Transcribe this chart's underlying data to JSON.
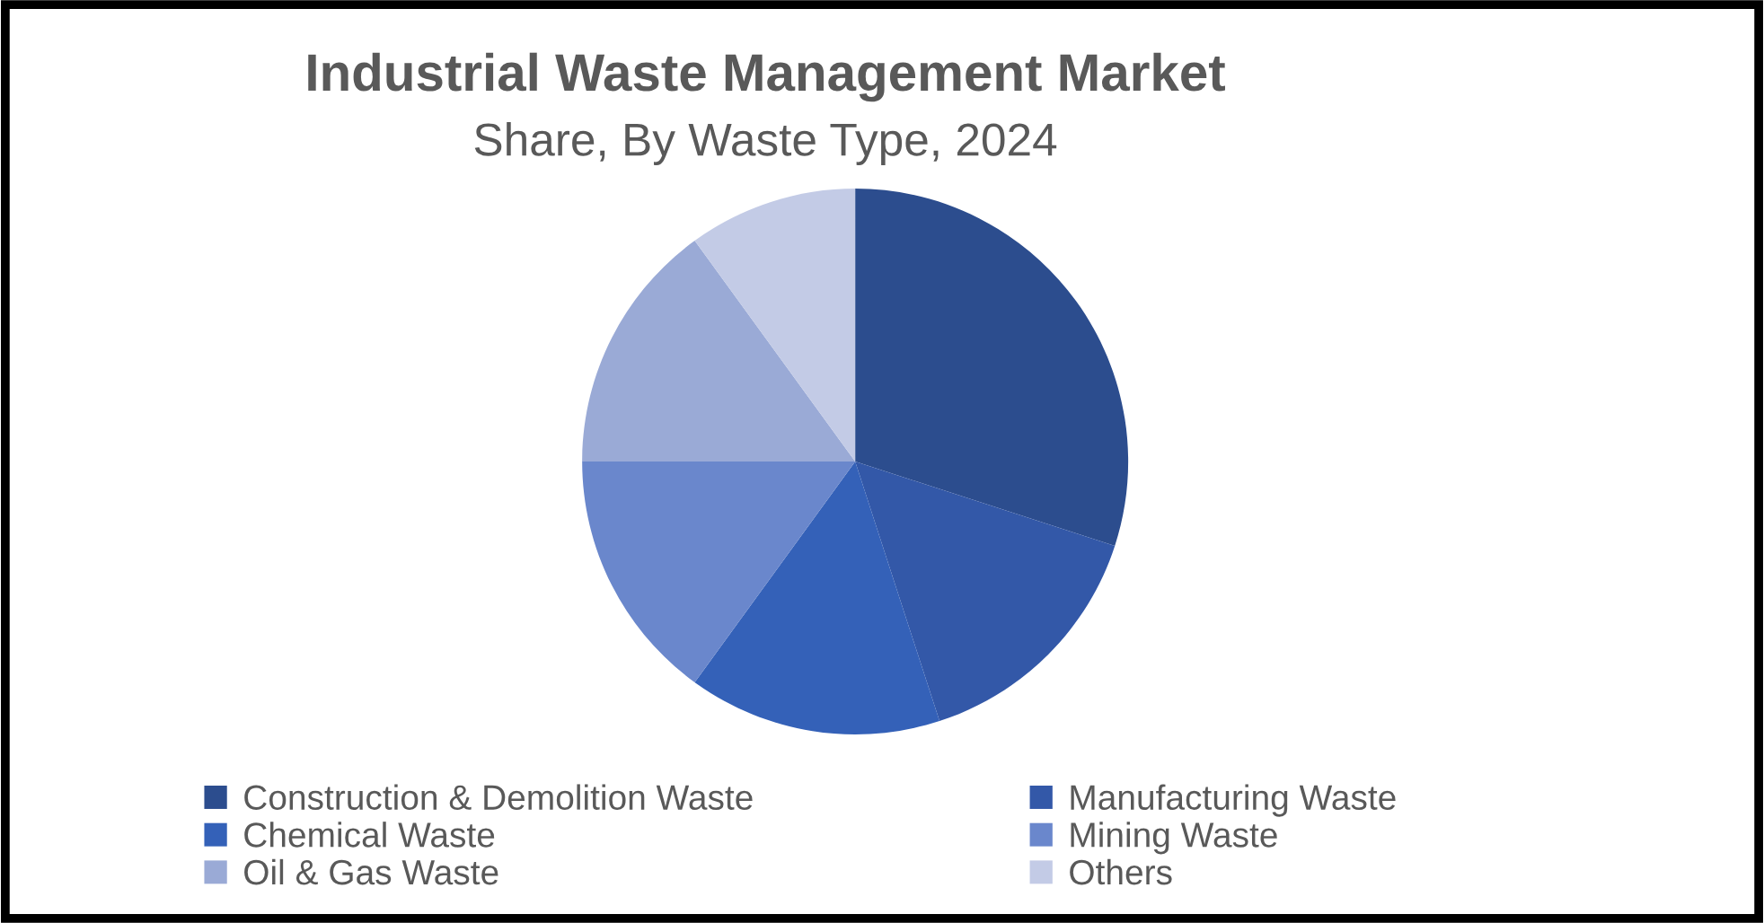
{
  "chart_data": {
    "type": "pie",
    "title": "Industrial Waste Management Market",
    "subtitle": "Share, By Waste Type, 2024",
    "categories": [
      "Construction & Demolition Waste",
      "Manufacturing Waste",
      "Chemical Waste",
      "Mining Waste",
      "Oil & Gas Waste",
      "Others"
    ],
    "values": [
      30,
      15,
      15,
      15,
      15,
      10
    ],
    "colors": [
      "#2c4d8e",
      "#3358a8",
      "#3461b8",
      "#6a87cc",
      "#9aaad6",
      "#c3cbe6"
    ],
    "legend": "bottom"
  }
}
